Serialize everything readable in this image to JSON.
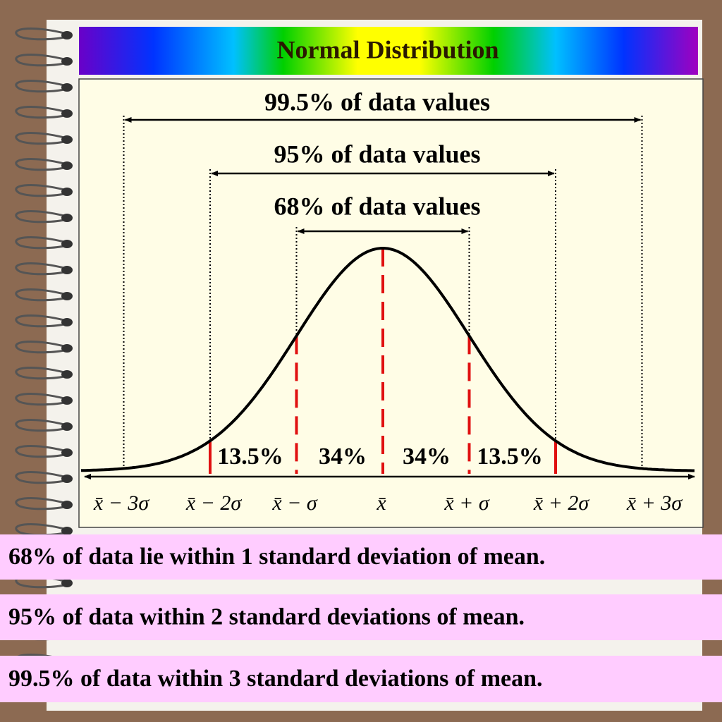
{
  "header": {
    "title": "Normal Distribution"
  },
  "spans": [
    {
      "label": "99.5% of data values"
    },
    {
      "label": "95% of data values"
    },
    {
      "label": "68% of data values"
    }
  ],
  "regions": [
    "13.5%",
    "34%",
    "34%",
    "13.5%"
  ],
  "axis_labels": [
    "x̄ − 3σ",
    "x̄ − 2σ",
    "x̄ − σ",
    "x̄",
    "x̄ + σ",
    "x̄ + 2σ",
    "x̄ + 3σ"
  ],
  "statements": [
    "68% of data lie within 1 standard deviation of mean.",
    "95% of data within 2 standard deviations of mean.",
    "99.5% of data within 3 standard deviations of mean."
  ]
}
